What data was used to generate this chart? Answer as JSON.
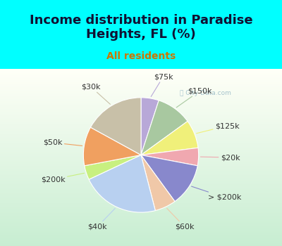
{
  "title": "Income distribution in Paradise\nHeights, FL (%)",
  "subtitle": "All residents",
  "labels": [
    "$75k",
    "$150k",
    "$125k",
    "$20k",
    "> $200k",
    "$60k",
    "$40k",
    "$200k",
    "$50k",
    "$30k"
  ],
  "sizes": [
    5,
    10,
    8,
    5,
    12,
    6,
    22,
    4,
    11,
    17
  ],
  "colors": [
    "#b8a8d8",
    "#a8c8a0",
    "#f0f07a",
    "#f0a8b0",
    "#8888cc",
    "#f0c8a8",
    "#b8d0f0",
    "#c8f080",
    "#f0a060",
    "#c8c0a8"
  ],
  "title_fontsize": 13,
  "subtitle_fontsize": 10,
  "subtitle_color": "#cc7700",
  "title_color": "#111133",
  "bg_color": "#00ffff",
  "label_fontsize": 8,
  "startangle": 90,
  "watermark": "City-Data.com"
}
